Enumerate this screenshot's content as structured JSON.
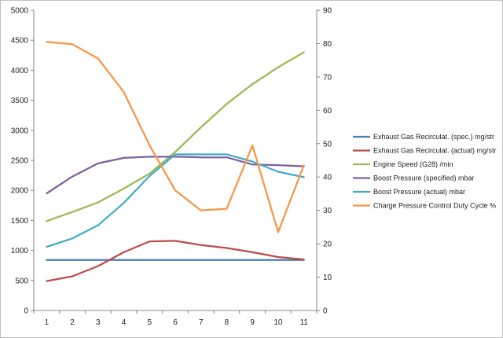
{
  "chart_data": {
    "type": "line",
    "title": "",
    "xlabel": "",
    "ylabel": "",
    "categories": [
      "1",
      "2",
      "3",
      "4",
      "5",
      "6",
      "7",
      "8",
      "9",
      "10",
      "11"
    ],
    "y_left": {
      "ylim": [
        0,
        5000
      ],
      "ticks": [
        "0",
        "500",
        "1000",
        "1500",
        "2000",
        "2500",
        "3000",
        "3500",
        "4000",
        "4500",
        "5000"
      ]
    },
    "y_right": {
      "ylim": [
        0,
        90
      ],
      "ticks": [
        "0",
        "10",
        "20",
        "30",
        "40",
        "50",
        "60",
        "70",
        "80",
        "90"
      ]
    },
    "grid": false,
    "legend_position": "right",
    "series": [
      {
        "name": "Exhaust Gas Recirculat. (spec.)  mg/str",
        "axis": "left",
        "color": "#4A7EBB",
        "values": [
          840,
          840,
          840,
          840,
          840,
          840,
          840,
          840,
          840,
          840,
          840
        ]
      },
      {
        "name": "Exhaust Gas Recirculat. (actual)  mg/str",
        "axis": "left",
        "color": "#BE4B48",
        "values": [
          490,
          570,
          740,
          970,
          1150,
          1160,
          1090,
          1040,
          970,
          890,
          850
        ]
      },
      {
        "name": "Engine Speed (G28)  /min",
        "axis": "left",
        "color": "#98B954",
        "values": [
          1490,
          1640,
          1800,
          2030,
          2280,
          2640,
          3050,
          3440,
          3770,
          4050,
          4300
        ]
      },
      {
        "name": "Boost Pressure (specified)  mbar",
        "axis": "left",
        "color": "#7D60A0",
        "values": [
          1950,
          2230,
          2450,
          2540,
          2560,
          2560,
          2550,
          2550,
          2430,
          2420,
          2400
        ]
      },
      {
        "name": "Boost Pressure (actual)  mbar",
        "axis": "left",
        "color": "#46AAC5",
        "values": [
          1060,
          1200,
          1420,
          1790,
          2240,
          2600,
          2600,
          2600,
          2480,
          2310,
          2220
        ]
      },
      {
        "name": "Charge Pressure Control Duty Cycle  %",
        "axis": "right",
        "color": "#F79646",
        "values": [
          80.5,
          79.8,
          75.5,
          65.5,
          49.5,
          36.0,
          30.0,
          30.5,
          49.5,
          23.5,
          43.5
        ]
      }
    ]
  }
}
